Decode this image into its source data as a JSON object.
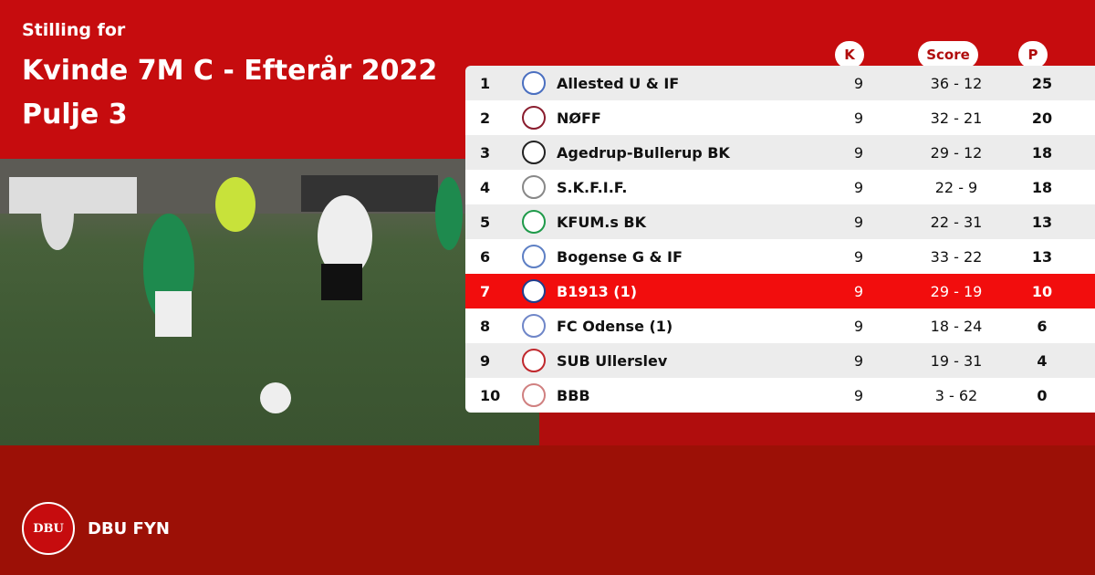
{
  "header": {
    "subtitle": "Stilling for",
    "title_line1": "Kvinde 7M C - Efterår 2022",
    "title_line2": "Pulje 3"
  },
  "columns": {
    "k": "K",
    "score": "Score",
    "p": "P"
  },
  "highlight_color": "#f20d0d",
  "rows": [
    {
      "pos": "1",
      "team": "Allested U & IF",
      "k": "9",
      "score": "36 - 12",
      "p": "25",
      "logo_color": "#4a6fc0"
    },
    {
      "pos": "2",
      "team": "NØFF",
      "k": "9",
      "score": "32 - 21",
      "p": "20",
      "logo_color": "#8a1d2e"
    },
    {
      "pos": "3",
      "team": "Agedrup-Bullerup BK",
      "k": "9",
      "score": "29 - 12",
      "p": "18",
      "logo_color": "#222222"
    },
    {
      "pos": "4",
      "team": "S.K.F.I.F.",
      "k": "9",
      "score": "22 - 9",
      "p": "18",
      "logo_color": "#888888"
    },
    {
      "pos": "5",
      "team": "KFUM.s BK",
      "k": "9",
      "score": "22 - 31",
      "p": "13",
      "logo_color": "#1f9a4a"
    },
    {
      "pos": "6",
      "team": "Bogense G & IF",
      "k": "9",
      "score": "33 - 22",
      "p": "13",
      "logo_color": "#5d7fc4"
    },
    {
      "pos": "7",
      "team": "B1913 (1)",
      "k": "9",
      "score": "29 - 19",
      "p": "10",
      "logo_color": "#1e3f8f",
      "highlighted": true
    },
    {
      "pos": "8",
      "team": "FC Odense (1)",
      "k": "9",
      "score": "18 - 24",
      "p": "6",
      "logo_color": "#6f86c8"
    },
    {
      "pos": "9",
      "team": "SUB Ullerslev",
      "k": "9",
      "score": "19 - 31",
      "p": "4",
      "logo_color": "#c0282d"
    },
    {
      "pos": "10",
      "team": "BBB",
      "k": "9",
      "score": "3 - 62",
      "p": "0",
      "logo_color": "#d08080"
    }
  ],
  "footer": {
    "brand": "DBU FYN",
    "seal_text": "DBU"
  }
}
